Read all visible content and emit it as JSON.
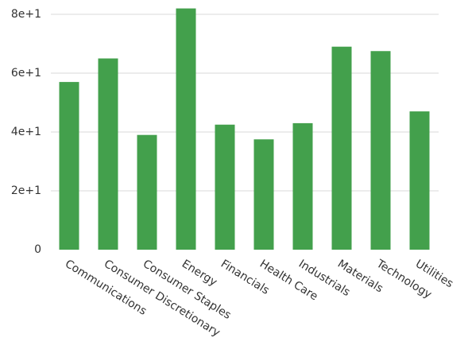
{
  "chart_data": {
    "type": "bar",
    "title": "",
    "xlabel": "",
    "ylabel": "",
    "categories": [
      "Communications",
      "Consumer Discretionary",
      "Consumer Staples",
      "Energy",
      "Financials",
      "Health Care",
      "Industrials",
      "Materials",
      "Technology",
      "Utilities"
    ],
    "values": [
      57,
      65,
      39,
      82,
      42.5,
      37.5,
      43,
      69,
      67.5,
      47
    ],
    "ylim": [
      0,
      80
    ],
    "yticks": [
      0,
      20,
      40,
      60,
      80
    ],
    "ytick_labels": [
      "0",
      "2e+1",
      "4e+1",
      "6e+1",
      "8e+1"
    ],
    "grid": true,
    "legend": "none",
    "colors": {
      "bar": "#43a04c",
      "grid": "#ececec",
      "text": "#333333"
    }
  }
}
